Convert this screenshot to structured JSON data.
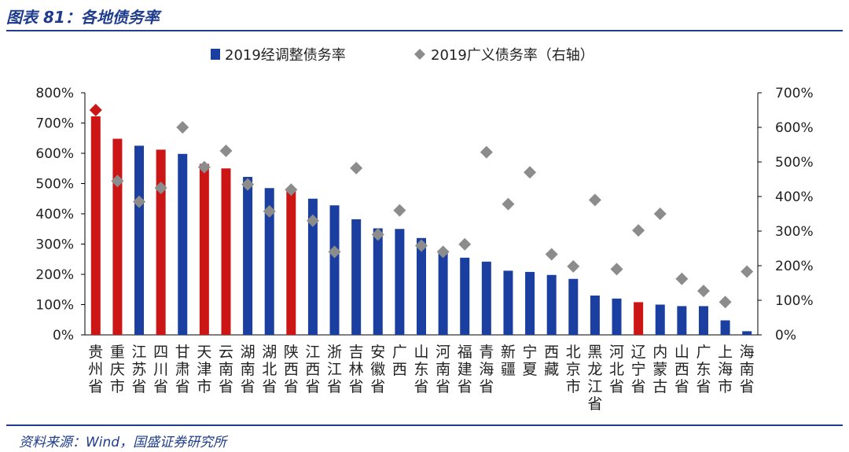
{
  "figure": {
    "title": "图表 81：各地债务率",
    "source": "资料来源：Wind，国盛证券研究所"
  },
  "colors": {
    "bar_blue": "#1a3fa0",
    "bar_red": "#cc1616",
    "marker_gray": "#8c8c8c",
    "marker_red": "#cc1616",
    "rule": "#1f3d8c"
  },
  "chart_data": {
    "type": "bar",
    "categories": [
      "贵州省",
      "重庆市",
      "江苏省",
      "四川省",
      "甘肃省",
      "天津市",
      "云南省",
      "湖南省",
      "湖北省",
      "陕西省",
      "江西省",
      "浙江省",
      "吉林省",
      "安徽省",
      "广西",
      "山东省",
      "河南省",
      "福建省",
      "青海省",
      "新疆",
      "宁夏",
      "西藏",
      "北京市",
      "黑龙江省",
      "河北省",
      "辽宁省",
      "内蒙古",
      "山西省",
      "广东省",
      "上海市",
      "海南省"
    ],
    "highlight": [
      true,
      true,
      false,
      true,
      false,
      true,
      true,
      false,
      false,
      true,
      false,
      false,
      false,
      false,
      false,
      false,
      false,
      false,
      false,
      false,
      false,
      false,
      false,
      false,
      false,
      true,
      false,
      false,
      false,
      false,
      false
    ],
    "series": [
      {
        "name": "2019经调整债务率",
        "axis": "left",
        "kind": "bar",
        "values": [
          722,
          648,
          625,
          612,
          598,
          565,
          550,
          522,
          485,
          480,
          450,
          428,
          382,
          352,
          350,
          320,
          280,
          255,
          242,
          212,
          208,
          198,
          185,
          130,
          120,
          108,
          100,
          95,
          95,
          48,
          12
        ]
      },
      {
        "name": "2019广义债务率（右轴）",
        "axis": "right",
        "kind": "scatter",
        "values": [
          650,
          445,
          385,
          425,
          600,
          485,
          532,
          435,
          357,
          420,
          330,
          240,
          482,
          290,
          360,
          258,
          240,
          262,
          528,
          378,
          470,
          233,
          198,
          390,
          190,
          302,
          350,
          162,
          127,
          95,
          183
        ]
      }
    ],
    "ylim_left": [
      0,
      800
    ],
    "yticks_left": [
      "0%",
      "100%",
      "200%",
      "300%",
      "400%",
      "500%",
      "600%",
      "700%",
      "800%"
    ],
    "ylim_right": [
      0,
      700
    ],
    "yticks_right": [
      "0%",
      "100%",
      "200%",
      "300%",
      "400%",
      "500%",
      "600%",
      "700%"
    ],
    "legend_position": "top",
    "grid": false
  }
}
